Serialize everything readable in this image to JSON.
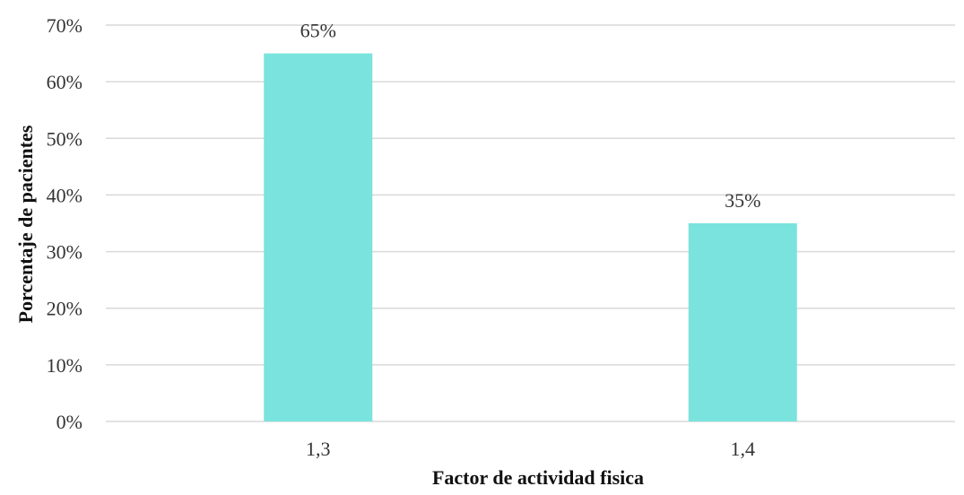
{
  "chart_data": {
    "type": "bar",
    "categories": [
      "1,3",
      "1,4"
    ],
    "values": [
      65,
      35
    ],
    "value_labels": [
      "65%",
      "35%"
    ],
    "xlabel": "Factor de actividad fisica",
    "ylabel": "Porcentaje de pacientes",
    "ylim": [
      0,
      70
    ],
    "yticks": [
      0,
      10,
      20,
      30,
      40,
      50,
      60,
      70
    ],
    "ytick_labels": [
      "0%",
      "10%",
      "20%",
      "30%",
      "40%",
      "50%",
      "60%",
      "70%"
    ],
    "grid": "horizontal",
    "legend": "none",
    "bar_color": "#7ae3dd"
  }
}
